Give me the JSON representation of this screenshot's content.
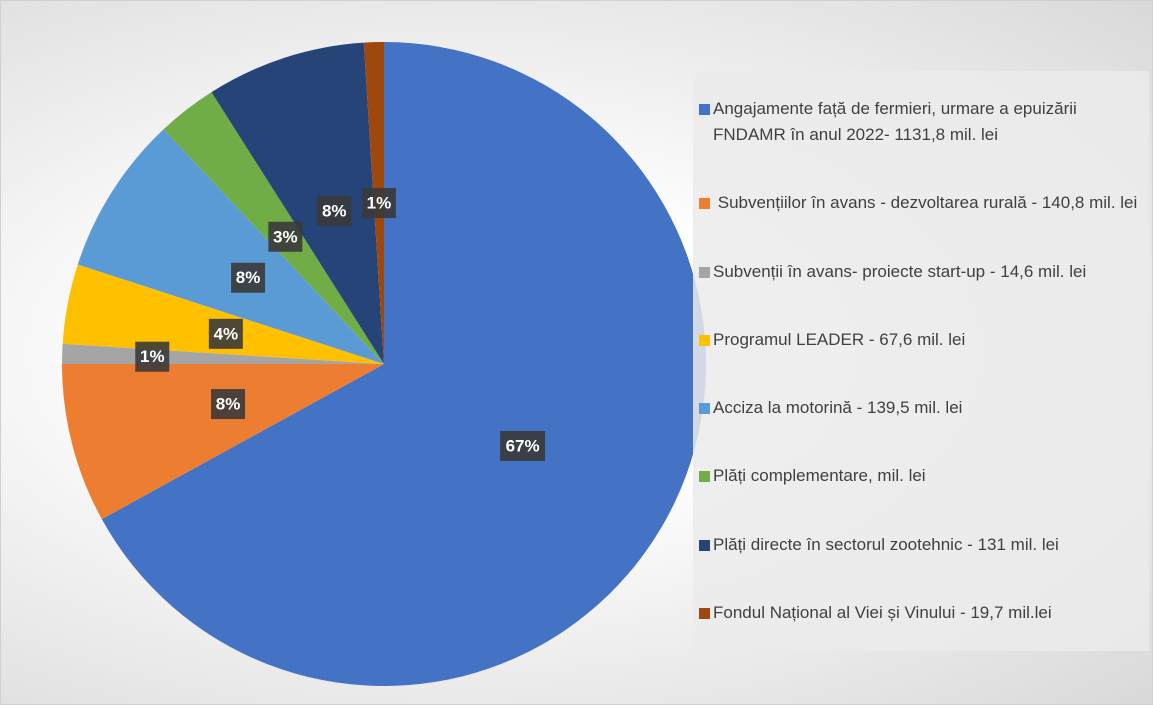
{
  "chart_data": {
    "type": "pie",
    "categories": [
      "Angajamente față de fermieri, urmare a epuizării FNDAMR în anul 2022- 1131,8 mil. lei",
      " Subvențiilor în avans - dezvoltarea rurală - 140,8 mil. lei",
      "Subvenții în avans- proiecte start-up - 14,6 mil. lei",
      "Programul LEADER - 67,6 mil. lei",
      "Acciza la motorină - 139,5 mil. lei",
      "Plăți complementare, mil. lei",
      "Plăți directe în sectorul zootehnic - 131 mil. lei",
      "Fondul Național al Viei și Vinului - 19,7 mil.lei"
    ],
    "values": [
      67,
      8,
      1,
      4,
      8,
      3,
      8,
      1
    ],
    "value_labels": [
      "67%",
      "8%",
      "1%",
      "4%",
      "8%",
      "3%",
      "8%",
      "1%"
    ],
    "colors": [
      "#4472c4",
      "#ed7d31",
      "#a5a5a5",
      "#ffc000",
      "#5b9bd5",
      "#70ad47",
      "#264478",
      "#9e480e"
    ],
    "legend": "right"
  }
}
